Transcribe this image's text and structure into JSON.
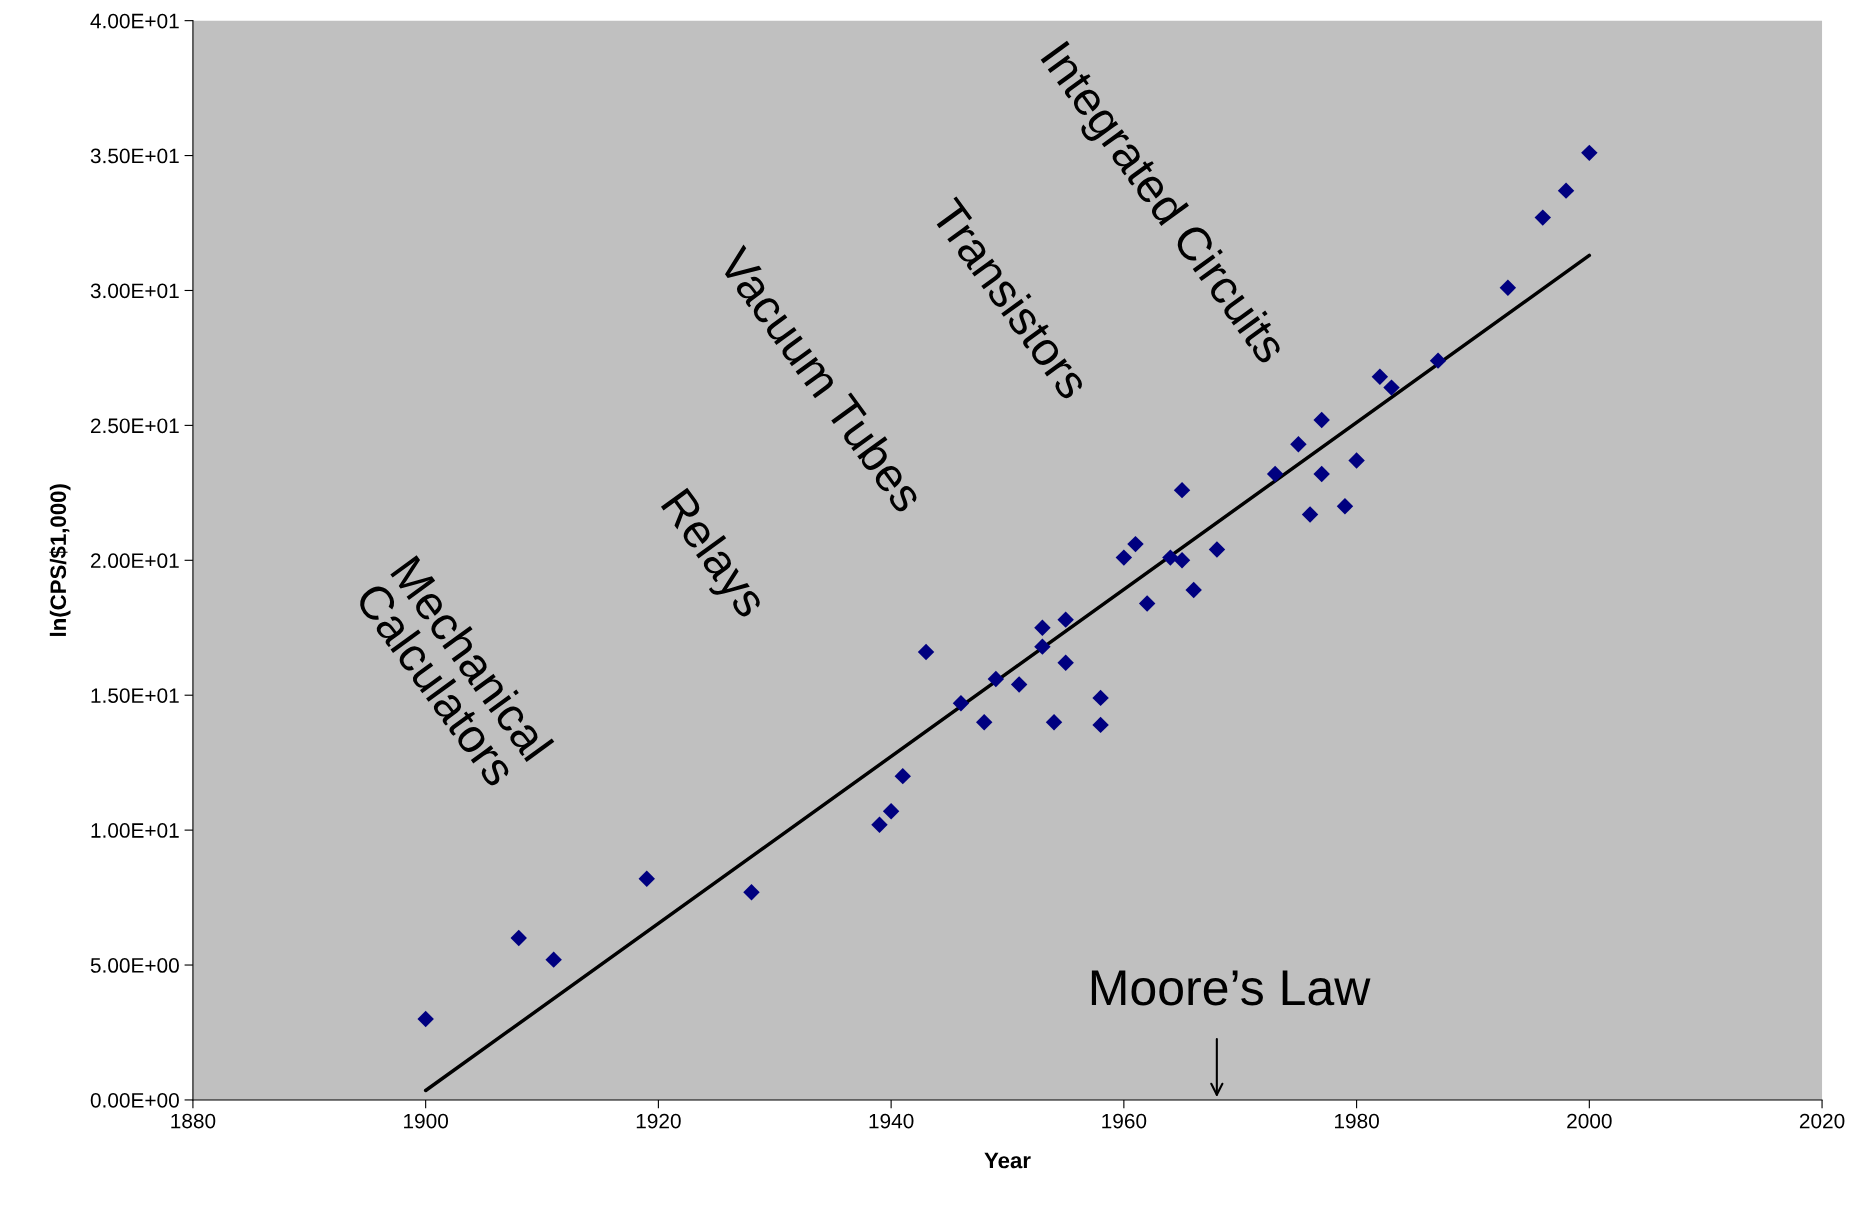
{
  "chart_data": {
    "type": "scatter",
    "xlabel": "Year",
    "ylabel": "ln(CPS/$1,000)",
    "x": [
      1900,
      1908,
      1911,
      1919,
      1928,
      1939,
      1940,
      1941,
      1943,
      1946,
      1948,
      1949,
      1951,
      1953,
      1953,
      1954,
      1955,
      1955,
      1958,
      1958,
      1960,
      1961,
      1962,
      1964,
      1965,
      1965,
      1966,
      1968,
      1973,
      1975,
      1976,
      1977,
      1977,
      1979,
      1980,
      1982,
      1983,
      1987,
      1993,
      1996,
      1998,
      2000
    ],
    "series": [
      {
        "color": "#000080",
        "marker": "diamond",
        "values": [
          3.0,
          6.0,
          5.2,
          8.2,
          7.7,
          10.2,
          10.7,
          12.0,
          16.6,
          14.7,
          14.0,
          15.6,
          15.4,
          17.5,
          16.8,
          14.0,
          17.8,
          16.2,
          14.9,
          13.9,
          20.1,
          20.6,
          18.4,
          20.1,
          22.6,
          20.0,
          18.9,
          20.4,
          23.2,
          24.3,
          21.7,
          25.2,
          23.2,
          22.0,
          23.7,
          26.8,
          26.4,
          27.4,
          30.1,
          32.7,
          33.7,
          35.1
        ]
      },
      {
        "type": "line",
        "color": "#000000",
        "marker": "none",
        "line_style": "solid",
        "x": [
          1900,
          2000
        ],
        "values": [
          0.35,
          31.3
        ]
      }
    ],
    "xlim": [
      1880,
      2020
    ],
    "xticks": [
      1880,
      1900,
      1920,
      1940,
      1960,
      1980,
      2000,
      2020
    ],
    "ylim": [
      0,
      40
    ],
    "yticks": [
      {
        "value": 0,
        "label": "0.00E+00"
      },
      {
        "value": 5,
        "label": "5.00E+00"
      },
      {
        "value": 10,
        "label": "1.00E+01"
      },
      {
        "value": 15,
        "label": "1.50E+01"
      },
      {
        "value": 20,
        "label": "2.00E+01"
      },
      {
        "value": 25,
        "label": "2.50E+01"
      },
      {
        "value": 30,
        "label": "3.00E+01"
      },
      {
        "value": 35,
        "label": "3.50E+01"
      },
      {
        "value": 40,
        "label": "4.00E+01"
      }
    ],
    "grid": false,
    "legend": false,
    "annotations": [
      "Mechanical\nCalculators",
      "Relays",
      "Vacuum Tubes",
      "Transistors",
      "Integrated Circuits",
      "Moore’s Law"
    ]
  }
}
